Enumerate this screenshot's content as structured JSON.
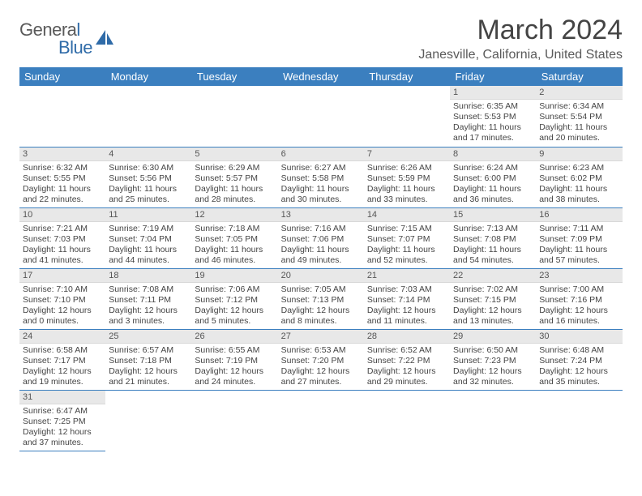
{
  "logo": {
    "word1": "Genera",
    "word2": "l",
    "word3": "Blue"
  },
  "title": "March 2024",
  "location": "Janesville, California, United States",
  "header_bg": "#3b7fbf",
  "accent": "#2f6ba8",
  "weekdays": [
    "Sunday",
    "Monday",
    "Tuesday",
    "Wednesday",
    "Thursday",
    "Friday",
    "Saturday"
  ],
  "weeks": [
    [
      null,
      null,
      null,
      null,
      null,
      {
        "n": "1",
        "sr": "Sunrise: 6:35 AM",
        "ss": "Sunset: 5:53 PM",
        "dl1": "Daylight: 11 hours",
        "dl2": "and 17 minutes."
      },
      {
        "n": "2",
        "sr": "Sunrise: 6:34 AM",
        "ss": "Sunset: 5:54 PM",
        "dl1": "Daylight: 11 hours",
        "dl2": "and 20 minutes."
      }
    ],
    [
      {
        "n": "3",
        "sr": "Sunrise: 6:32 AM",
        "ss": "Sunset: 5:55 PM",
        "dl1": "Daylight: 11 hours",
        "dl2": "and 22 minutes."
      },
      {
        "n": "4",
        "sr": "Sunrise: 6:30 AM",
        "ss": "Sunset: 5:56 PM",
        "dl1": "Daylight: 11 hours",
        "dl2": "and 25 minutes."
      },
      {
        "n": "5",
        "sr": "Sunrise: 6:29 AM",
        "ss": "Sunset: 5:57 PM",
        "dl1": "Daylight: 11 hours",
        "dl2": "and 28 minutes."
      },
      {
        "n": "6",
        "sr": "Sunrise: 6:27 AM",
        "ss": "Sunset: 5:58 PM",
        "dl1": "Daylight: 11 hours",
        "dl2": "and 30 minutes."
      },
      {
        "n": "7",
        "sr": "Sunrise: 6:26 AM",
        "ss": "Sunset: 5:59 PM",
        "dl1": "Daylight: 11 hours",
        "dl2": "and 33 minutes."
      },
      {
        "n": "8",
        "sr": "Sunrise: 6:24 AM",
        "ss": "Sunset: 6:00 PM",
        "dl1": "Daylight: 11 hours",
        "dl2": "and 36 minutes."
      },
      {
        "n": "9",
        "sr": "Sunrise: 6:23 AM",
        "ss": "Sunset: 6:02 PM",
        "dl1": "Daylight: 11 hours",
        "dl2": "and 38 minutes."
      }
    ],
    [
      {
        "n": "10",
        "sr": "Sunrise: 7:21 AM",
        "ss": "Sunset: 7:03 PM",
        "dl1": "Daylight: 11 hours",
        "dl2": "and 41 minutes."
      },
      {
        "n": "11",
        "sr": "Sunrise: 7:19 AM",
        "ss": "Sunset: 7:04 PM",
        "dl1": "Daylight: 11 hours",
        "dl2": "and 44 minutes."
      },
      {
        "n": "12",
        "sr": "Sunrise: 7:18 AM",
        "ss": "Sunset: 7:05 PM",
        "dl1": "Daylight: 11 hours",
        "dl2": "and 46 minutes."
      },
      {
        "n": "13",
        "sr": "Sunrise: 7:16 AM",
        "ss": "Sunset: 7:06 PM",
        "dl1": "Daylight: 11 hours",
        "dl2": "and 49 minutes."
      },
      {
        "n": "14",
        "sr": "Sunrise: 7:15 AM",
        "ss": "Sunset: 7:07 PM",
        "dl1": "Daylight: 11 hours",
        "dl2": "and 52 minutes."
      },
      {
        "n": "15",
        "sr": "Sunrise: 7:13 AM",
        "ss": "Sunset: 7:08 PM",
        "dl1": "Daylight: 11 hours",
        "dl2": "and 54 minutes."
      },
      {
        "n": "16",
        "sr": "Sunrise: 7:11 AM",
        "ss": "Sunset: 7:09 PM",
        "dl1": "Daylight: 11 hours",
        "dl2": "and 57 minutes."
      }
    ],
    [
      {
        "n": "17",
        "sr": "Sunrise: 7:10 AM",
        "ss": "Sunset: 7:10 PM",
        "dl1": "Daylight: 12 hours",
        "dl2": "and 0 minutes."
      },
      {
        "n": "18",
        "sr": "Sunrise: 7:08 AM",
        "ss": "Sunset: 7:11 PM",
        "dl1": "Daylight: 12 hours",
        "dl2": "and 3 minutes."
      },
      {
        "n": "19",
        "sr": "Sunrise: 7:06 AM",
        "ss": "Sunset: 7:12 PM",
        "dl1": "Daylight: 12 hours",
        "dl2": "and 5 minutes."
      },
      {
        "n": "20",
        "sr": "Sunrise: 7:05 AM",
        "ss": "Sunset: 7:13 PM",
        "dl1": "Daylight: 12 hours",
        "dl2": "and 8 minutes."
      },
      {
        "n": "21",
        "sr": "Sunrise: 7:03 AM",
        "ss": "Sunset: 7:14 PM",
        "dl1": "Daylight: 12 hours",
        "dl2": "and 11 minutes."
      },
      {
        "n": "22",
        "sr": "Sunrise: 7:02 AM",
        "ss": "Sunset: 7:15 PM",
        "dl1": "Daylight: 12 hours",
        "dl2": "and 13 minutes."
      },
      {
        "n": "23",
        "sr": "Sunrise: 7:00 AM",
        "ss": "Sunset: 7:16 PM",
        "dl1": "Daylight: 12 hours",
        "dl2": "and 16 minutes."
      }
    ],
    [
      {
        "n": "24",
        "sr": "Sunrise: 6:58 AM",
        "ss": "Sunset: 7:17 PM",
        "dl1": "Daylight: 12 hours",
        "dl2": "and 19 minutes."
      },
      {
        "n": "25",
        "sr": "Sunrise: 6:57 AM",
        "ss": "Sunset: 7:18 PM",
        "dl1": "Daylight: 12 hours",
        "dl2": "and 21 minutes."
      },
      {
        "n": "26",
        "sr": "Sunrise: 6:55 AM",
        "ss": "Sunset: 7:19 PM",
        "dl1": "Daylight: 12 hours",
        "dl2": "and 24 minutes."
      },
      {
        "n": "27",
        "sr": "Sunrise: 6:53 AM",
        "ss": "Sunset: 7:20 PM",
        "dl1": "Daylight: 12 hours",
        "dl2": "and 27 minutes."
      },
      {
        "n": "28",
        "sr": "Sunrise: 6:52 AM",
        "ss": "Sunset: 7:22 PM",
        "dl1": "Daylight: 12 hours",
        "dl2": "and 29 minutes."
      },
      {
        "n": "29",
        "sr": "Sunrise: 6:50 AM",
        "ss": "Sunset: 7:23 PM",
        "dl1": "Daylight: 12 hours",
        "dl2": "and 32 minutes."
      },
      {
        "n": "30",
        "sr": "Sunrise: 6:48 AM",
        "ss": "Sunset: 7:24 PM",
        "dl1": "Daylight: 12 hours",
        "dl2": "and 35 minutes."
      }
    ],
    [
      {
        "n": "31",
        "sr": "Sunrise: 6:47 AM",
        "ss": "Sunset: 7:25 PM",
        "dl1": "Daylight: 12 hours",
        "dl2": "and 37 minutes."
      },
      null,
      null,
      null,
      null,
      null,
      null
    ]
  ]
}
